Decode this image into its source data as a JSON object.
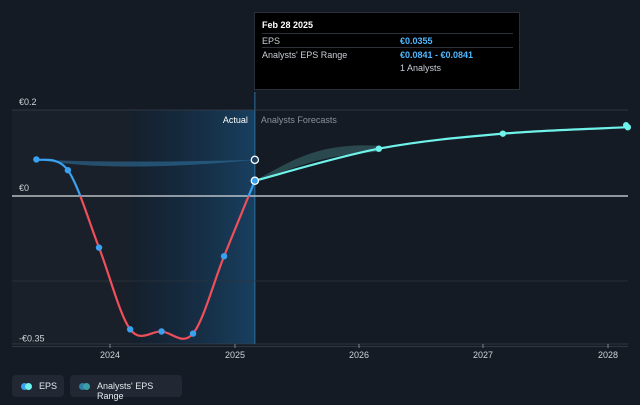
{
  "chart_data": {
    "type": "line",
    "x_ticks": [
      "2024",
      "2025",
      "2026",
      "2027",
      "2028"
    ],
    "y_ticks": [
      {
        "label": "€0.2",
        "value": 0.2
      },
      {
        "label": "€0",
        "value": 0
      },
      {
        "label": "-€0.35",
        "value": -0.35
      }
    ],
    "ylim": [
      -0.35,
      0.2
    ],
    "regions": {
      "actual": "Actual",
      "forecast": "Analysts Forecasts"
    },
    "series": [
      {
        "name": "EPS",
        "color": "#3aa0f0",
        "points": [
          {
            "x": "2023-05-31",
            "y": 0.085
          },
          {
            "x": "2023-08-31",
            "y": 0.06
          },
          {
            "x": "2023-11-30",
            "y": -0.12
          },
          {
            "x": "2024-02-29",
            "y": -0.31
          },
          {
            "x": "2024-05-31",
            "y": -0.315
          },
          {
            "x": "2024-08-31",
            "y": -0.32
          },
          {
            "x": "2024-11-30",
            "y": -0.14
          },
          {
            "x": "2025-02-28",
            "y": 0.0355
          }
        ]
      },
      {
        "name": "Analysts' EPS Range",
        "color": "#6ff2ea",
        "points": [
          {
            "x": "2025-02-28",
            "y": 0.0355
          },
          {
            "x": "2026-02-28",
            "y": 0.11
          },
          {
            "x": "2027-02-28",
            "y": 0.145
          },
          {
            "x": "2028-02-28",
            "y": 0.16
          }
        ]
      }
    ],
    "range_band": [
      {
        "x": "2023-05-31",
        "y": 0.085
      },
      {
        "x": "2025-02-28",
        "y": 0.0841
      }
    ]
  },
  "tooltip": {
    "date": "Feb 28 2025",
    "rows": [
      {
        "label": "EPS",
        "value": "€0.0355"
      },
      {
        "label": "Analysts' EPS Range",
        "value": "€0.0841 - €0.0841"
      },
      {
        "label": "",
        "value": "1 Analysts"
      }
    ]
  },
  "legend": [
    {
      "label": "EPS",
      "color": "#3aa0f0"
    },
    {
      "label": "Analysts' EPS Range",
      "color": "#2f7fa6"
    }
  ]
}
